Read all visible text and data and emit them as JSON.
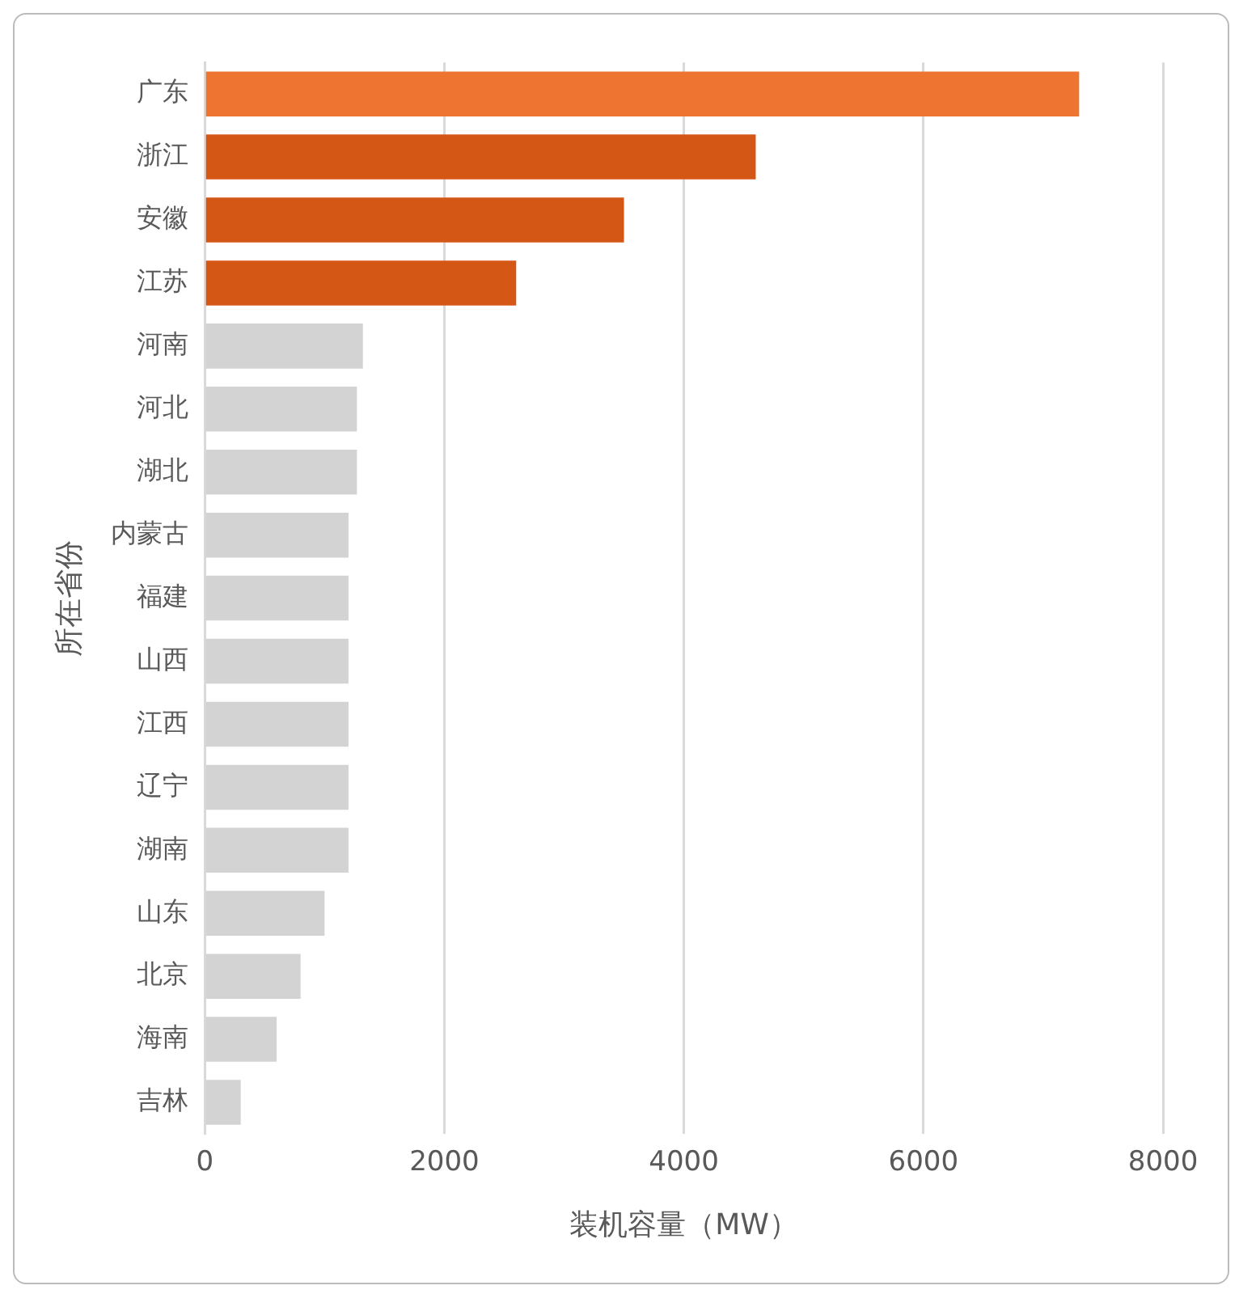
{
  "chart_data": {
    "type": "bar",
    "orientation": "horizontal",
    "xlabel": "装机容量（MW）",
    "ylabel": "所在省份",
    "categories": [
      "广东",
      "浙江",
      "安徽",
      "江苏",
      "河南",
      "河北",
      "湖北",
      "内蒙古",
      "福建",
      "山西",
      "江西",
      "辽宁",
      "湖南",
      "山东",
      "北京",
      "海南",
      "吉林"
    ],
    "values": [
      7300,
      4600,
      3500,
      2600,
      1320,
      1270,
      1270,
      1200,
      1200,
      1200,
      1200,
      1200,
      1200,
      1000,
      800,
      600,
      300
    ],
    "colors": [
      "#ed7431",
      "#d55716",
      "#d55716",
      "#d55716",
      "#d3d3d3",
      "#d3d3d3",
      "#d3d3d3",
      "#d3d3d3",
      "#d3d3d3",
      "#d3d3d3",
      "#d3d3d3",
      "#d3d3d3",
      "#d3d3d3",
      "#d3d3d3",
      "#d3d3d3",
      "#d3d3d3",
      "#d3d3d3"
    ],
    "xlim": [
      0,
      8000
    ],
    "xticks": [
      0,
      2000,
      4000,
      6000,
      8000
    ],
    "grid": "x",
    "legend": false
  }
}
